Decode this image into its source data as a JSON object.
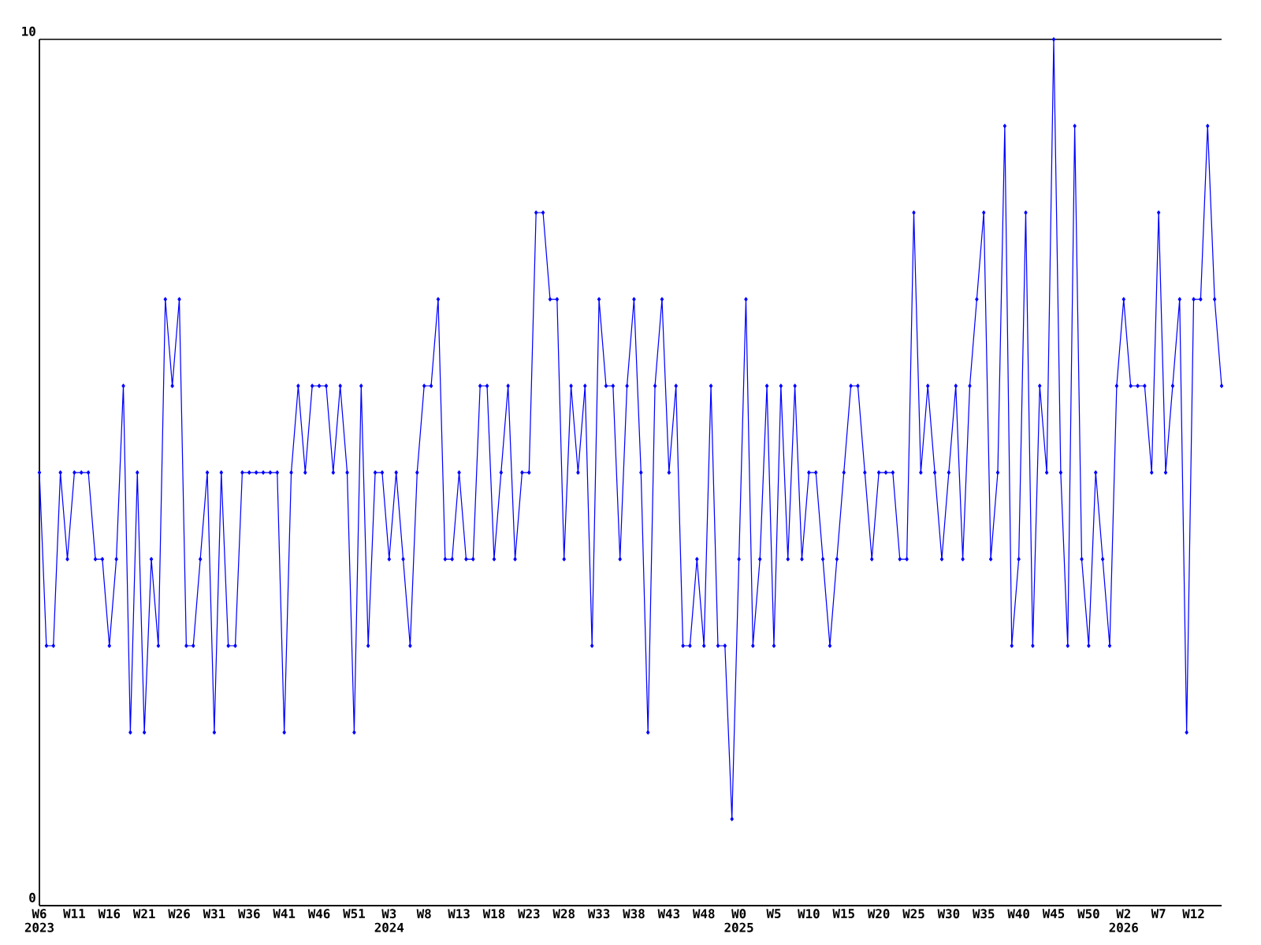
{
  "chart_data": {
    "type": "line",
    "categories": [
      "W6 2023",
      null,
      null,
      null,
      null,
      "W11",
      null,
      null,
      null,
      null,
      "W16",
      null,
      null,
      null,
      null,
      "W21",
      null,
      null,
      null,
      null,
      "W26",
      null,
      null,
      null,
      null,
      "W31",
      null,
      null,
      null,
      null,
      "W36",
      null,
      null,
      null,
      null,
      "W41",
      null,
      null,
      null,
      null,
      "W46",
      null,
      null,
      null,
      null,
      "W51",
      null,
      null,
      null,
      null,
      "W3 2024",
      null,
      null,
      null,
      null,
      "W8",
      null,
      null,
      null,
      null,
      "W13",
      null,
      null,
      null,
      null,
      "W18",
      null,
      null,
      null,
      null,
      "W23",
      null,
      null,
      null,
      null,
      "W28",
      null,
      null,
      null,
      null,
      "W33",
      null,
      null,
      null,
      null,
      "W38",
      null,
      null,
      null,
      null,
      "W43",
      null,
      null,
      null,
      null,
      "W48",
      null,
      null,
      null,
      null,
      "W0 2025",
      null,
      null,
      null,
      null,
      "W5",
      null,
      null,
      null,
      null,
      "W10",
      null,
      null,
      null,
      null,
      "W15",
      null,
      null,
      null,
      null,
      "W20",
      null,
      null,
      null,
      null,
      "W25",
      null,
      null,
      null,
      null,
      "W30",
      null,
      null,
      null,
      null,
      "W35",
      null,
      null,
      null,
      null,
      "W40",
      null,
      null,
      null,
      null,
      "W45",
      null,
      null,
      null,
      null,
      "W50",
      null,
      null,
      null,
      null,
      "W2 2026",
      null,
      null,
      null,
      null,
      "W7",
      null,
      null,
      null,
      null,
      "W12",
      null,
      null,
      null,
      null
    ],
    "values": [
      5,
      3,
      3,
      5,
      4,
      5,
      5,
      5,
      4,
      4,
      3,
      4,
      6,
      2,
      5,
      2,
      4,
      3,
      7,
      6,
      7,
      3,
      3,
      4,
      5,
      2,
      5,
      3,
      3,
      5,
      5,
      5,
      5,
      5,
      5,
      2,
      5,
      6,
      5,
      6,
      6,
      6,
      5,
      6,
      5,
      2,
      6,
      3,
      5,
      5,
      4,
      5,
      4,
      3,
      5,
      6,
      6,
      7,
      4,
      4,
      5,
      4,
      4,
      6,
      6,
      4,
      5,
      6,
      4,
      5,
      5,
      8,
      8,
      7,
      7,
      4,
      6,
      5,
      6,
      3,
      7,
      6,
      6,
      4,
      6,
      7,
      5,
      2,
      6,
      7,
      5,
      6,
      3,
      3,
      4,
      3,
      6,
      3,
      3,
      1,
      4,
      7,
      3,
      4,
      6,
      3,
      6,
      4,
      6,
      4,
      5,
      5,
      4,
      3,
      4,
      5,
      6,
      6,
      5,
      4,
      5,
      5,
      5,
      4,
      4,
      8,
      5,
      6,
      5,
      4,
      5,
      6,
      4,
      6,
      7,
      8,
      4,
      5,
      9,
      3,
      4,
      8,
      3,
      6,
      5,
      10,
      5,
      3,
      9,
      4,
      3,
      5,
      4,
      3,
      6,
      7,
      6,
      6,
      6,
      5,
      8,
      5,
      6,
      7,
      2,
      7,
      7,
      9,
      7,
      6
    ],
    "color": "#0000ff",
    "ylim": [
      0,
      10
    ],
    "yticks": [
      0,
      10
    ],
    "grid": "y",
    "marker": "diamond"
  }
}
